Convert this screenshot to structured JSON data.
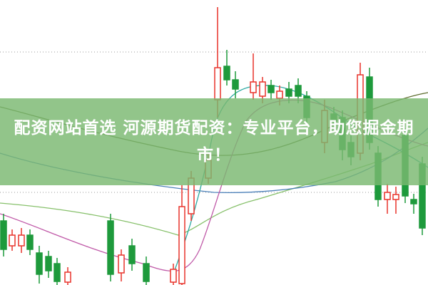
{
  "banner": {
    "title": "配资网站首选 河源期货配资：专业平台，助您掘金期市！"
  }
}
